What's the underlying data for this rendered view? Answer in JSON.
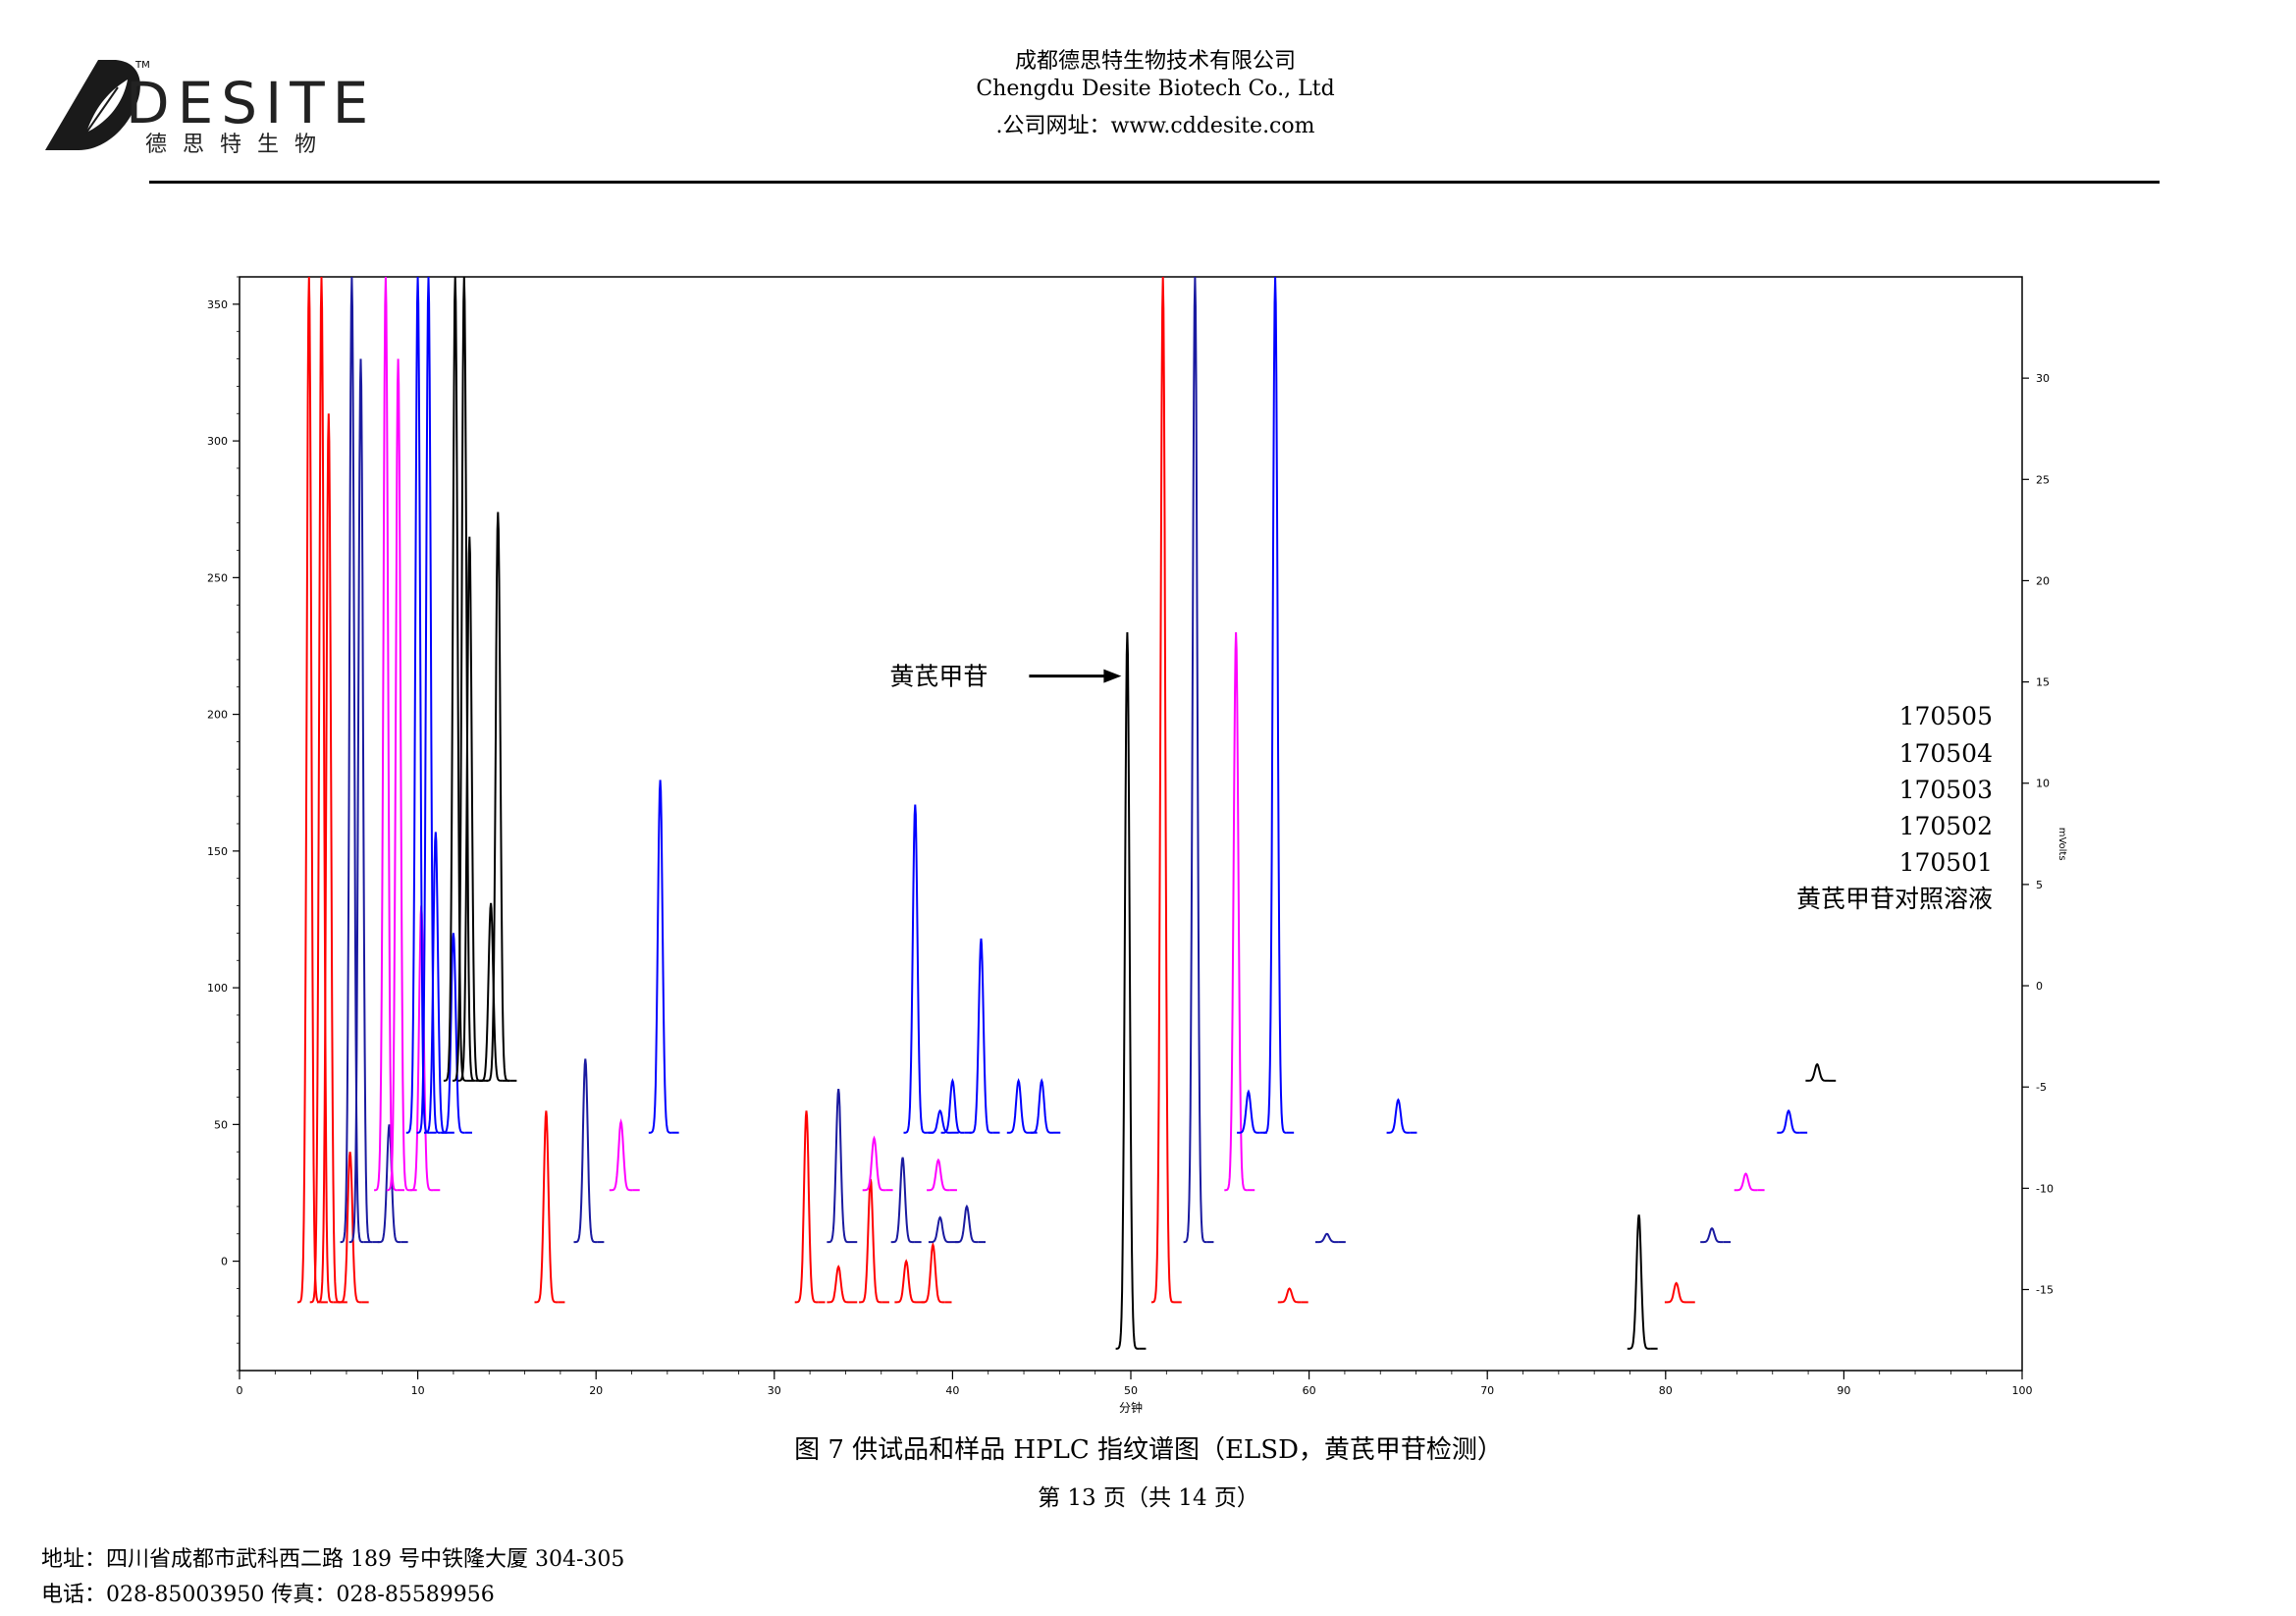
{
  "header": {
    "logo_brand": "DESITE",
    "logo_tm": "TM",
    "logo_cn": "德思特生物",
    "company_cn": "成都德思特生物技术有限公司",
    "company_en": "Chengdu Desite Biotech Co., Ltd",
    "website": ".公司网址：www.cddesite.com"
  },
  "chart_data": {
    "type": "line",
    "xlabel": "分钟",
    "ylabel": "",
    "y2label": "mVolts",
    "xlim": [
      0,
      100
    ],
    "ylim": [
      -40,
      360
    ],
    "y2lim": [
      -19,
      35
    ],
    "x_ticks": [
      0,
      10,
      20,
      30,
      40,
      50,
      60,
      70,
      80,
      90,
      100
    ],
    "y_ticks": [
      0,
      50,
      100,
      150,
      200,
      250,
      300,
      350
    ],
    "y2_ticks": [
      -15,
      -10,
      -5,
      0,
      5,
      10,
      15,
      20,
      25,
      30
    ],
    "annotation": {
      "text": "黄芪甲苷",
      "arrow_to": [
        49.8,
        214
      ]
    },
    "series": [
      {
        "name": "黄芪甲苷对照溶液",
        "color": "#000000",
        "baseline": -32,
        "peaks": [
          [
            49.8,
            230
          ],
          [
            78.5,
            17
          ]
        ]
      },
      {
        "name": "170501",
        "color": "#ff0000",
        "baseline": -15,
        "peaks": [
          [
            3.9,
            360
          ],
          [
            4.6,
            360
          ],
          [
            5.0,
            310
          ],
          [
            6.2,
            40
          ],
          [
            17.2,
            55
          ],
          [
            31.8,
            55
          ],
          [
            33.6,
            -2
          ],
          [
            35.4,
            30
          ],
          [
            37.4,
            0
          ],
          [
            38.9,
            6
          ],
          [
            51.8,
            360
          ],
          [
            58.9,
            -10
          ],
          [
            80.6,
            -8
          ]
        ]
      },
      {
        "name": "170502",
        "color": "#1a1aa0",
        "baseline": 7,
        "peaks": [
          [
            6.3,
            360
          ],
          [
            6.8,
            330
          ],
          [
            8.4,
            50
          ],
          [
            19.4,
            74
          ],
          [
            33.6,
            63
          ],
          [
            37.2,
            38
          ],
          [
            39.3,
            16
          ],
          [
            40.8,
            20
          ],
          [
            53.6,
            360
          ],
          [
            61.0,
            10
          ],
          [
            82.6,
            12
          ]
        ]
      },
      {
        "name": "170503",
        "color": "#ff00ff",
        "baseline": 26,
        "peaks": [
          [
            8.2,
            360
          ],
          [
            8.9,
            330
          ],
          [
            10.2,
            130
          ],
          [
            21.4,
            51
          ],
          [
            35.6,
            45
          ],
          [
            39.2,
            37
          ],
          [
            55.9,
            230
          ],
          [
            84.5,
            32
          ]
        ]
      },
      {
        "name": "170504",
        "color": "#0000ff",
        "baseline": 47,
        "peaks": [
          [
            10.0,
            360
          ],
          [
            10.6,
            360
          ],
          [
            11.0,
            157
          ],
          [
            12.0,
            120
          ],
          [
            23.6,
            176
          ],
          [
            37.9,
            167
          ],
          [
            39.3,
            55
          ],
          [
            40.0,
            66
          ],
          [
            41.6,
            118
          ],
          [
            43.7,
            66
          ],
          [
            45.0,
            66
          ],
          [
            56.6,
            62
          ],
          [
            58.1,
            360
          ],
          [
            65.0,
            59
          ],
          [
            86.9,
            55
          ]
        ]
      },
      {
        "name": "170505",
        "color": "#000000",
        "baseline": 66,
        "peaks": [
          [
            12.1,
            360
          ],
          [
            12.6,
            360
          ],
          [
            12.9,
            265
          ],
          [
            14.1,
            131
          ],
          [
            14.5,
            274
          ],
          [
            88.5,
            72
          ]
        ]
      }
    ]
  },
  "caption": "图 7  供试品和样品 HPLC 指纹谱图（ELSD，黄芪甲苷检测）",
  "page_number": "第 13 页（共 14 页）",
  "footer": {
    "address": "地址：四川省成都市武科西二路 189 号中铁隆大厦 304-305",
    "contact": "电话：028-85003950    传真：028-85589956"
  }
}
